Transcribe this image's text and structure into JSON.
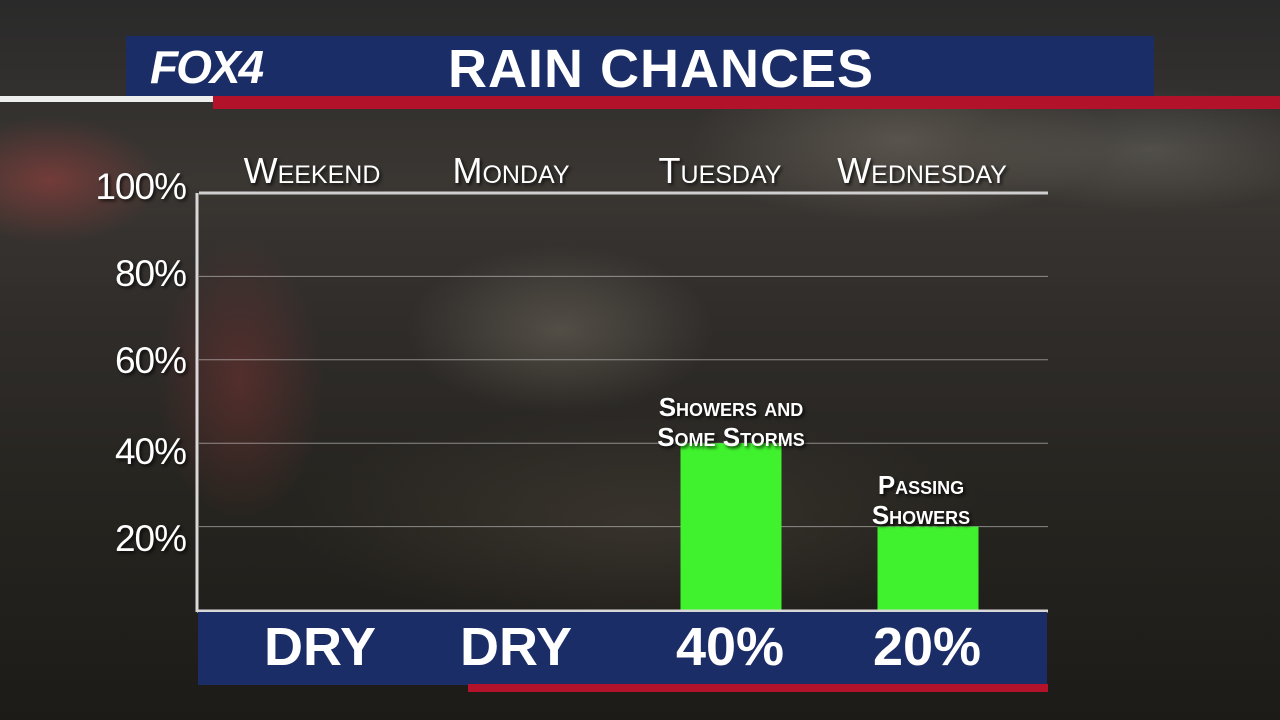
{
  "header": {
    "logo_text": "FOX4",
    "title": "RAIN CHANCES"
  },
  "colors": {
    "navy": "#1b2d66",
    "red": "#b3132a",
    "bar_green": "#40f22e"
  },
  "chart_data": {
    "type": "bar",
    "title": "RAIN CHANCES",
    "categories": [
      "Weekend",
      "Monday",
      "Tuesday",
      "Wednesday"
    ],
    "values": [
      0,
      0,
      40,
      20
    ],
    "value_labels": [
      "DRY",
      "DRY",
      "40%",
      "20%"
    ],
    "bar_notes": [
      "",
      "",
      "Showers and Some Storms",
      "Passing Showers"
    ],
    "y_ticks": [
      "20%",
      "40%",
      "60%",
      "80%",
      "100%"
    ],
    "ylim": [
      0,
      100
    ],
    "unit": "%",
    "grid": true
  }
}
